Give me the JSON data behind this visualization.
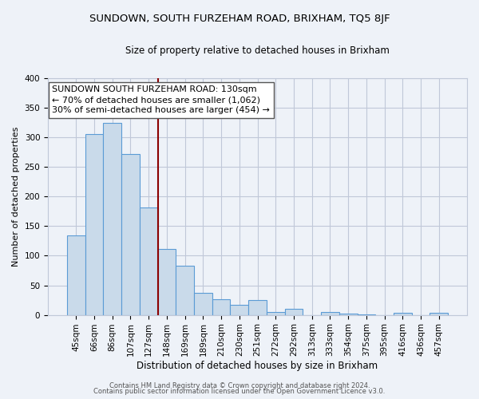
{
  "title": "SUNDOWN, SOUTH FURZEHAM ROAD, BRIXHAM, TQ5 8JF",
  "subtitle": "Size of property relative to detached houses in Brixham",
  "xlabel": "Distribution of detached houses by size in Brixham",
  "ylabel": "Number of detached properties",
  "footer_line1": "Contains HM Land Registry data © Crown copyright and database right 2024.",
  "footer_line2": "Contains public sector information licensed under the Open Government Licence v3.0.",
  "bin_labels": [
    "45sqm",
    "66sqm",
    "86sqm",
    "107sqm",
    "127sqm",
    "148sqm",
    "169sqm",
    "189sqm",
    "210sqm",
    "230sqm",
    "251sqm",
    "272sqm",
    "292sqm",
    "313sqm",
    "333sqm",
    "354sqm",
    "375sqm",
    "395sqm",
    "416sqm",
    "436sqm",
    "457sqm"
  ],
  "bar_values": [
    135,
    305,
    325,
    272,
    182,
    112,
    83,
    37,
    27,
    17,
    25,
    5,
    10,
    0,
    5,
    2,
    1,
    0,
    3,
    0,
    3
  ],
  "bar_color": "#c9daea",
  "bar_edge_color": "#5b9bd5",
  "grid_color": "#c0c8d8",
  "vline_x": 4.5,
  "vline_color": "#8b0000",
  "annotation_line1": "SUNDOWN SOUTH FURZEHAM ROAD: 130sqm",
  "annotation_line2": "← 70% of detached houses are smaller (1,062)",
  "annotation_line3": "30% of semi-detached houses are larger (454) →",
  "ylim": [
    0,
    400
  ],
  "yticks": [
    0,
    50,
    100,
    150,
    200,
    250,
    300,
    350,
    400
  ],
  "background_color": "#eef2f8",
  "title_fontsize": 9.5,
  "subtitle_fontsize": 8.5,
  "annotation_fontsize": 8,
  "ylabel_fontsize": 8,
  "xlabel_fontsize": 8.5,
  "tick_fontsize": 7.5,
  "footer_fontsize": 6
}
